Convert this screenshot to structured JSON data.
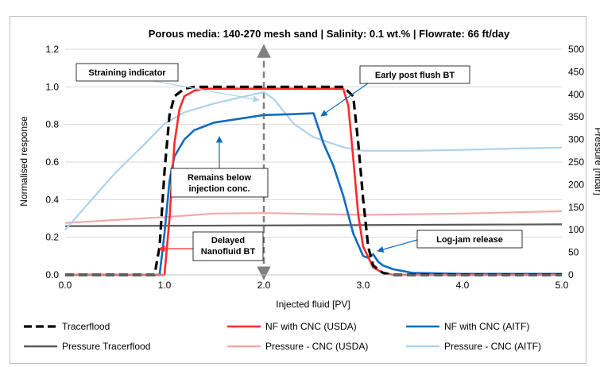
{
  "chart_data": {
    "type": "line",
    "title": "Porous media: 140-270 mesh sand | Salinity: 0.1 wt.% | Flowrate: 66 ft/day",
    "xlabel": "Injected fluid [PV]",
    "ylabel": "Normalised response",
    "y2label": "Pressure [mbar]",
    "xlim": [
      0,
      5
    ],
    "ylim": [
      0,
      1.2
    ],
    "y2lim": [
      0,
      500
    ],
    "x_ticks": [
      "0.0",
      "1.0",
      "2.0",
      "3.0",
      "4.0",
      "5.0"
    ],
    "y_ticks": [
      "0.0",
      "0.2",
      "0.4",
      "0.6",
      "0.8",
      "1.0",
      "1.2"
    ],
    "y2_ticks": [
      "0",
      "50",
      "100",
      "150",
      "200",
      "250",
      "300",
      "350",
      "400",
      "450",
      "500"
    ],
    "grid": "horizontal",
    "legend_position": "bottom",
    "vertical_marker_x": 2.0,
    "series": [
      {
        "name": "Tracerflood",
        "axis": "left",
        "color": "#000000",
        "style": "dashed",
        "x": [
          0,
          0.9,
          0.95,
          1.0,
          1.05,
          1.1,
          1.2,
          1.3,
          1.5,
          2.0,
          2.5,
          2.8,
          2.9,
          2.95,
          3.0,
          3.05,
          3.1,
          3.2,
          3.3,
          5.0
        ],
        "y": [
          0,
          0,
          0.15,
          0.55,
          0.85,
          0.95,
          0.99,
          1.0,
          1.0,
          1.0,
          1.0,
          1.0,
          0.95,
          0.7,
          0.4,
          0.15,
          0.05,
          0.01,
          0,
          0
        ]
      },
      {
        "name": "NF with CNC (USDA)",
        "axis": "left",
        "color": "#ff2a2a",
        "style": "solid",
        "x": [
          0,
          1.0,
          1.05,
          1.1,
          1.15,
          1.2,
          1.3,
          1.4,
          1.6,
          2.0,
          2.5,
          2.8,
          2.85,
          2.9,
          2.95,
          3.0,
          3.1,
          3.2,
          3.3,
          5.0
        ],
        "y": [
          0,
          0,
          0.3,
          0.7,
          0.88,
          0.95,
          0.98,
          0.99,
          0.99,
          0.99,
          0.99,
          0.99,
          0.9,
          0.62,
          0.32,
          0.15,
          0.04,
          0.01,
          0,
          0
        ]
      },
      {
        "name": "NF with CNC (AITF)",
        "axis": "left",
        "color": "#0f6cbd",
        "style": "solid",
        "x": [
          0,
          0.95,
          1.0,
          1.05,
          1.1,
          1.2,
          1.3,
          1.5,
          2.0,
          2.3,
          2.5,
          2.55,
          2.6,
          2.7,
          2.8,
          2.9,
          3.0,
          3.05,
          3.1,
          3.15,
          3.2,
          3.3,
          3.5,
          4.0,
          5.0
        ],
        "y": [
          0,
          0,
          0.22,
          0.5,
          0.63,
          0.72,
          0.77,
          0.81,
          0.85,
          0.855,
          0.86,
          0.78,
          0.7,
          0.58,
          0.42,
          0.22,
          0.1,
          0.09,
          0.11,
          0.07,
          0.05,
          0.03,
          0.01,
          0.005,
          0.005
        ]
      },
      {
        "name": "Pressure Tracerflood",
        "axis": "right",
        "color": "#595959",
        "style": "solid",
        "x": [
          0,
          5.0
        ],
        "y": [
          108,
          112
        ]
      },
      {
        "name": "Pressure - CNC (USDA)",
        "axis": "right",
        "color": "#f4a8a8",
        "style": "solid",
        "x": [
          0,
          1.0,
          1.5,
          2.0,
          2.5,
          3.0,
          4.0,
          5.0
        ],
        "y": [
          115,
          128,
          136,
          137,
          135,
          133,
          136,
          141
        ]
      },
      {
        "name": "Pressure - CNC (AITF)",
        "axis": "right",
        "color": "#add2ec",
        "style": "solid",
        "x": [
          0,
          0.2,
          0.5,
          0.8,
          1.0,
          1.2,
          1.5,
          1.8,
          2.0,
          2.1,
          2.3,
          2.5,
          2.8,
          3.0,
          3.5,
          4.0,
          4.5,
          5.0
        ],
        "y": [
          100,
          150,
          225,
          290,
          335,
          360,
          380,
          395,
          405,
          390,
          335,
          305,
          283,
          275,
          275,
          277,
          280,
          282
        ]
      }
    ],
    "annotations": [
      {
        "text": "Straining indicator",
        "series_color": "#add2ec"
      },
      {
        "text": "Early post flush BT",
        "series_color": "#0f6cbd"
      },
      {
        "text": "Remains below\ninjection conc.",
        "series_color": "#0f6cbd"
      },
      {
        "text": "Delayed\nNanofluid BT",
        "series_color": "#ff2a2a"
      },
      {
        "text": "Log-jam release",
        "series_color": "#0f6cbd"
      }
    ]
  }
}
